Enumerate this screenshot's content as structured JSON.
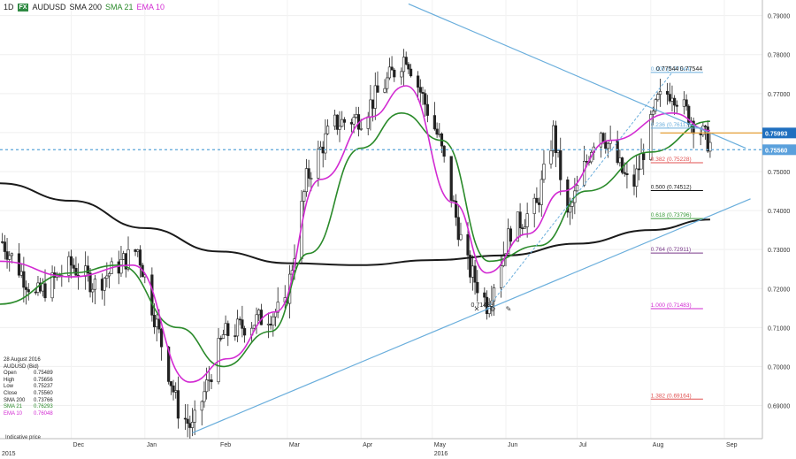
{
  "toolbar": {
    "interval": "1D",
    "logo": "FX",
    "symbol": "AUDUSD",
    "sma200": "SMA 200",
    "sma21": "SMA 21",
    "ema10": "EMA 10"
  },
  "info_panel": {
    "date": "28 August 2016",
    "instrument": "AUDUSD (Bid)",
    "rows": [
      {
        "k": "Open",
        "v": "0.75489"
      },
      {
        "k": "High",
        "v": "0.75656"
      },
      {
        "k": "Low",
        "v": "0.75237"
      },
      {
        "k": "Close",
        "v": "0.75560"
      },
      {
        "k": "SMA 200",
        "v": "0.73766"
      },
      {
        "k": "SMA 21",
        "v": "0.76293"
      },
      {
        "k": "EMA 10",
        "v": "0.76048"
      }
    ],
    "note": "Indicative price"
  },
  "colors": {
    "candle": "#222222",
    "sma200": "#1a1a1a",
    "sma21": "#2a8a2a",
    "ema10": "#d22ad2",
    "trend": "#6aaedc",
    "horiz_orange": "#e8a23a",
    "fib_grey": "#9aa6b8",
    "fib_blue": "#6aaedc",
    "fib_red": "#e05050",
    "fib_green": "#3a9a3a",
    "fib_purple": "#7a3a8a",
    "fib_pink": "#d22ad2",
    "fib_black": "#111111",
    "price_tag_dark": "#1f6fbf",
    "price_tag_light": "#5aa0dc"
  },
  "chart_data": {
    "type": "candlestick",
    "symbol": "AUDUSD",
    "interval": "1D",
    "y_ticks": [
      "0.79000",
      "0.78000",
      "0.77000",
      "0.76000",
      "0.75000",
      "0.74000",
      "0.73000",
      "0.72000",
      "0.71000",
      "0.70000",
      "0.69000"
    ],
    "ylim": [
      0.6815,
      0.794
    ],
    "x_labels": [
      {
        "label": "Dec",
        "date": "2015-12-01"
      },
      {
        "label": "Jan",
        "date": "2016-01-01"
      },
      {
        "label": "Feb",
        "date": "2016-02-01"
      },
      {
        "label": "Mar",
        "date": "2016-03-01"
      },
      {
        "label": "Apr",
        "date": "2016-04-01"
      },
      {
        "label": "May",
        "date": "2016-05-01"
      },
      {
        "label": "Jun",
        "date": "2016-06-01"
      },
      {
        "label": "Jul",
        "date": "2016-07-01"
      },
      {
        "label": "Aug",
        "date": "2016-08-01"
      },
      {
        "label": "Sep",
        "date": "2016-09-01"
      }
    ],
    "year_labels": [
      {
        "label": "2015",
        "date": "2015-11-01"
      },
      {
        "label": "2016",
        "date": "2016-05-01"
      }
    ],
    "price_path": [
      {
        "date": "2015-11-02",
        "value": 0.732
      },
      {
        "date": "2015-11-16",
        "value": 0.718
      },
      {
        "date": "2015-12-01",
        "value": 0.726
      },
      {
        "date": "2015-12-11",
        "value": 0.721
      },
      {
        "date": "2015-12-29",
        "value": 0.73
      },
      {
        "date": "2016-01-15",
        "value": 0.689
      },
      {
        "date": "2016-01-21",
        "value": 0.684
      },
      {
        "date": "2016-02-03",
        "value": 0.708
      },
      {
        "date": "2016-02-10",
        "value": 0.71
      },
      {
        "date": "2016-02-29",
        "value": 0.715
      },
      {
        "date": "2016-03-09",
        "value": 0.748
      },
      {
        "date": "2016-03-20",
        "value": 0.762
      },
      {
        "date": "2016-04-01",
        "value": 0.764
      },
      {
        "date": "2016-04-20",
        "value": 0.78
      },
      {
        "date": "2016-05-04",
        "value": 0.758
      },
      {
        "date": "2016-05-15",
        "value": 0.727
      },
      {
        "date": "2016-05-24",
        "value": 0.716
      },
      {
        "date": "2016-06-03",
        "value": 0.735
      },
      {
        "date": "2016-06-14",
        "value": 0.741
      },
      {
        "date": "2016-06-21",
        "value": 0.76
      },
      {
        "date": "2016-06-27",
        "value": 0.738
      },
      {
        "date": "2016-07-10",
        "value": 0.762
      },
      {
        "date": "2016-07-24",
        "value": 0.745
      },
      {
        "date": "2016-08-04",
        "value": 0.768
      },
      {
        "date": "2016-08-10",
        "value": 0.771
      },
      {
        "date": "2016-08-15",
        "value": 0.766
      },
      {
        "date": "2016-08-26",
        "value": 0.757
      }
    ],
    "sma200": [
      {
        "date": "2015-11-01",
        "value": 0.747
      },
      {
        "date": "2015-12-01",
        "value": 0.7425
      },
      {
        "date": "2016-01-01",
        "value": 0.7355
      },
      {
        "date": "2016-02-01",
        "value": 0.7295
      },
      {
        "date": "2016-03-01",
        "value": 0.7265
      },
      {
        "date": "2016-04-01",
        "value": 0.726
      },
      {
        "date": "2016-05-01",
        "value": 0.7273
      },
      {
        "date": "2016-06-01",
        "value": 0.7285
      },
      {
        "date": "2016-07-01",
        "value": 0.7315
      },
      {
        "date": "2016-08-01",
        "value": 0.735
      },
      {
        "date": "2016-08-26",
        "value": 0.7377
      }
    ],
    "sma21": [
      {
        "date": "2015-11-01",
        "value": 0.716
      },
      {
        "date": "2015-12-01",
        "value": 0.724
      },
      {
        "date": "2015-12-21",
        "value": 0.726
      },
      {
        "date": "2016-01-15",
        "value": 0.71
      },
      {
        "date": "2016-02-03",
        "value": 0.7
      },
      {
        "date": "2016-02-23",
        "value": 0.709
      },
      {
        "date": "2016-03-10",
        "value": 0.729
      },
      {
        "date": "2016-04-01",
        "value": 0.756
      },
      {
        "date": "2016-04-18",
        "value": 0.765
      },
      {
        "date": "2016-05-05",
        "value": 0.758
      },
      {
        "date": "2016-05-25",
        "value": 0.727
      },
      {
        "date": "2016-06-15",
        "value": 0.731
      },
      {
        "date": "2016-07-05",
        "value": 0.745
      },
      {
        "date": "2016-08-01",
        "value": 0.755
      },
      {
        "date": "2016-08-26",
        "value": 0.7629
      }
    ],
    "ema10": [
      {
        "date": "2015-11-01",
        "value": 0.727
      },
      {
        "date": "2015-12-01",
        "value": 0.723
      },
      {
        "date": "2015-12-27",
        "value": 0.726
      },
      {
        "date": "2016-01-20",
        "value": 0.696
      },
      {
        "date": "2016-02-05",
        "value": 0.702
      },
      {
        "date": "2016-02-25",
        "value": 0.714
      },
      {
        "date": "2016-03-15",
        "value": 0.748
      },
      {
        "date": "2016-04-05",
        "value": 0.764
      },
      {
        "date": "2016-04-20",
        "value": 0.772
      },
      {
        "date": "2016-05-10",
        "value": 0.742
      },
      {
        "date": "2016-05-24",
        "value": 0.724
      },
      {
        "date": "2016-06-10",
        "value": 0.734
      },
      {
        "date": "2016-06-25",
        "value": 0.745
      },
      {
        "date": "2016-07-15",
        "value": 0.758
      },
      {
        "date": "2016-08-10",
        "value": 0.765
      },
      {
        "date": "2016-08-26",
        "value": 0.7605
      }
    ],
    "trendlines": [
      {
        "from": {
          "date": "2016-01-21",
          "value": 0.683
        },
        "to": {
          "date": "2016-09-12",
          "value": 0.743
        }
      },
      {
        "from": {
          "date": "2016-04-21",
          "value": 0.793
        },
        "to": {
          "date": "2016-09-10",
          "value": 0.756
        }
      }
    ],
    "fib_retracement": {
      "from": {
        "date": "2016-05-24",
        "value": 0.71483
      },
      "to": {
        "date": "2016-08-10",
        "value": 0.77544
      },
      "levels": [
        {
          "label": "0.000 (0.77544)",
          "value": 0.77544,
          "color_key": "fib_blue"
        },
        {
          "label": "0.236 (0.76113)",
          "value": 0.76113,
          "color_key": "fib_blue"
        },
        {
          "label": "0.382 (0.75228)",
          "value": 0.75228,
          "color_key": "fib_red"
        },
        {
          "label": "0.500 (0.74512)",
          "value": 0.74512,
          "color_key": "fib_black"
        },
        {
          "label": "0.618 (0.73796)",
          "value": 0.73796,
          "color_key": "fib_green"
        },
        {
          "label": "0.764 (0.72911)",
          "value": 0.72911,
          "color_key": "fib_purple"
        },
        {
          "label": "1.000 (0.71483)",
          "value": 0.71483,
          "color_key": "fib_pink"
        },
        {
          "label": "1.382 (0.69164)",
          "value": 0.69164,
          "color_key": "fib_red"
        }
      ]
    },
    "annotations": [
      {
        "text": "0.77544",
        "date": "2016-08-10",
        "value": 0.77544
      },
      {
        "text": "0.77544",
        "date": "2016-08-20",
        "value": 0.77544
      },
      {
        "text": "0.71483",
        "date": "2016-05-24",
        "value": 0.71483
      }
    ],
    "horizontal_lines": [
      {
        "value": 0.7599,
        "label": "0.75993",
        "color_key": "horiz_orange",
        "tag_color_key": "price_tag_dark"
      },
      {
        "value": 0.7556,
        "label": "0.75560",
        "color_key": "trend",
        "tag_color_key": "price_tag_light"
      }
    ]
  }
}
